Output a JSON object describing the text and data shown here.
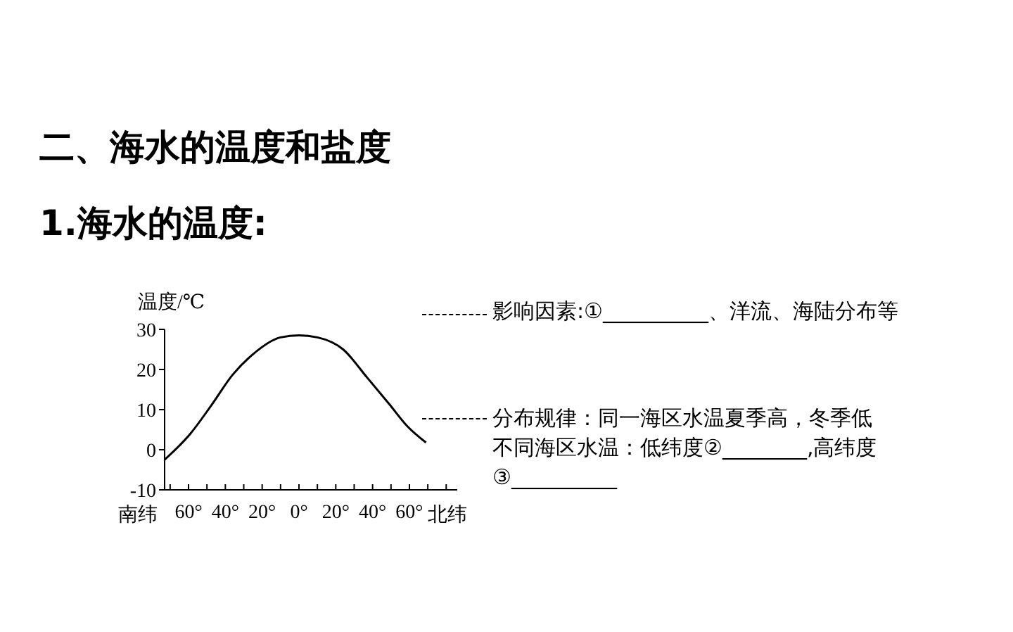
{
  "chart_data": {
    "type": "line",
    "title": "二、海水的温度和盐度",
    "subtitle": "1.海水的温度:",
    "ylabel": "温度/℃",
    "annotations": [
      "南纬",
      "北纬",
      "影响因素:①__________、洋流、海陆分布等",
      "分布规律：同一海区水温夏季高，冬季低",
      "不同海区水温：低纬度②________,高纬度",
      "③__________"
    ],
    "x": [
      -73,
      -59,
      -48,
      -36,
      -25,
      -10,
      0,
      10,
      24,
      37,
      49,
      59,
      69
    ],
    "values": [
      -2.5,
      4,
      10.8,
      18.7,
      23.8,
      28,
      28.5,
      28,
      25,
      18,
      11.4,
      5.8,
      1.8
    ],
    "color": "#000000",
    "xlim": [
      -73,
      86
    ],
    "xticks": [
      {
        "value": -70,
        "label": null
      },
      {
        "value": -60,
        "label": "60°"
      },
      {
        "value": -50,
        "label": null
      },
      {
        "value": -40,
        "label": "40°"
      },
      {
        "value": -30,
        "label": null
      },
      {
        "value": -20,
        "label": "20°"
      },
      {
        "value": -10,
        "label": null
      },
      {
        "value": 0,
        "label": "0°"
      },
      {
        "value": 10,
        "label": null
      },
      {
        "value": 20,
        "label": "20°"
      },
      {
        "value": 30,
        "label": null
      },
      {
        "value": 40,
        "label": "40°"
      },
      {
        "value": 50,
        "label": null
      },
      {
        "value": 60,
        "label": "60°"
      },
      {
        "value": 70,
        "label": null
      },
      {
        "value": 80,
        "label": null
      }
    ],
    "ylim": [
      -10,
      30
    ],
    "yticks": [
      -10,
      0,
      10,
      20,
      30
    ],
    "grid": false,
    "legend": false,
    "marker": "none",
    "line_style": "solid"
  }
}
